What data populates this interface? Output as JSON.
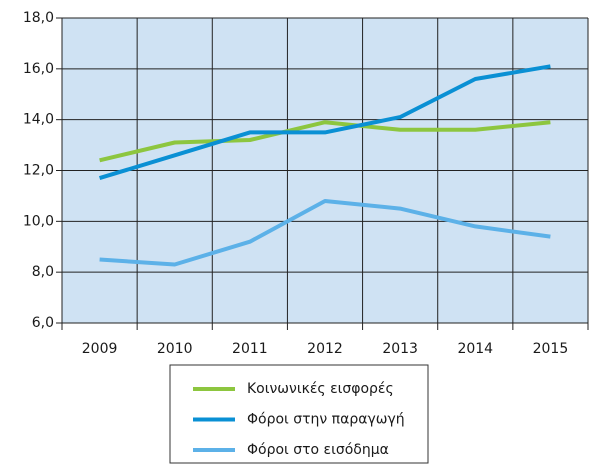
{
  "chart_data": {
    "type": "line",
    "categories": [
      "2009",
      "2010",
      "2011",
      "2012",
      "2013",
      "2014",
      "2015"
    ],
    "series": [
      {
        "name": "Κοινωνικές εισφορές",
        "color": "#8dc63f",
        "values": [
          12.4,
          13.1,
          13.2,
          13.9,
          13.6,
          13.6,
          13.9
        ]
      },
      {
        "name": "Φόροι στην παραγωγή",
        "color": "#0a90d4",
        "values": [
          11.7,
          12.6,
          13.5,
          13.5,
          14.1,
          15.6,
          16.1
        ]
      },
      {
        "name": "Φόροι στο εισόδημα",
        "color": "#5cb1e8",
        "values": [
          8.5,
          8.3,
          9.2,
          10.8,
          10.5,
          9.8,
          9.4
        ]
      }
    ],
    "ylim": [
      6,
      18
    ],
    "yticks": [
      {
        "value": 6,
        "label": "6,0"
      },
      {
        "value": 8,
        "label": "8,0"
      },
      {
        "value": 10,
        "label": "10,0"
      },
      {
        "value": 12,
        "label": "12,0"
      },
      {
        "value": 14,
        "label": "14,0"
      },
      {
        "value": 16,
        "label": "16,0"
      },
      {
        "value": 18,
        "label": "18,0"
      }
    ],
    "grid": true,
    "legend": "bottom"
  }
}
